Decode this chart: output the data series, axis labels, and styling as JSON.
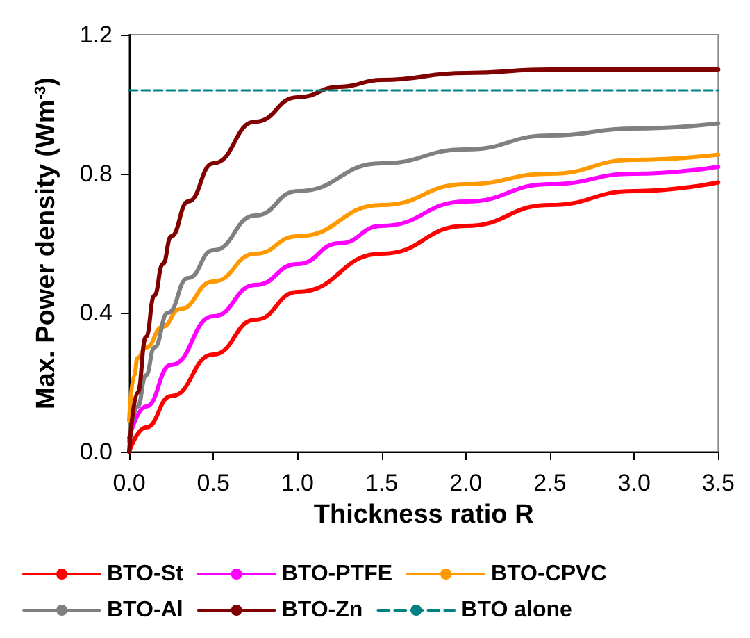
{
  "chart_data": {
    "type": "line",
    "xlabel": "Thickness ratio R",
    "ylabel": "Max. Power density (Wm$^{-3}$)",
    "xlim": [
      0,
      3.5
    ],
    "ylim": [
      0,
      1.2
    ],
    "xticks": [
      {
        "value": 0,
        "label": "0.0"
      },
      {
        "value": 0.5,
        "label": "0.5"
      },
      {
        "value": 1,
        "label": "1.0"
      },
      {
        "value": 1.5,
        "label": "1.5"
      },
      {
        "value": 2,
        "label": "2.0"
      },
      {
        "value": 2.5,
        "label": "2.5"
      },
      {
        "value": 3,
        "label": "3.0"
      },
      {
        "value": 3.5,
        "label": "3.5"
      }
    ],
    "yticks": [
      {
        "value": 0,
        "label": "0.0"
      },
      {
        "value": 0.4,
        "label": "0.4"
      },
      {
        "value": 0.8,
        "label": "0.8"
      },
      {
        "value": 1.2,
        "label": "1.2"
      }
    ],
    "grid": false,
    "legend": "bottom",
    "marker": "none",
    "line_style": "solid",
    "series": [
      {
        "name": "BTO-St",
        "color": "#ff0000",
        "x": [
          0,
          0.1,
          0.25,
          0.5,
          0.75,
          1,
          1.5,
          2,
          2.5,
          3,
          3.5
        ],
        "values": [
          0,
          0.07,
          0.16,
          0.28,
          0.38,
          0.46,
          0.57,
          0.65,
          0.71,
          0.75,
          0.775
        ]
      },
      {
        "name": "BTO-PTFE",
        "color": "#ff00ff",
        "x": [
          0,
          0.1,
          0.25,
          0.5,
          0.75,
          1,
          1.25,
          1.5,
          2,
          2.5,
          3,
          3.5
        ],
        "values": [
          0.04,
          0.13,
          0.25,
          0.39,
          0.48,
          0.54,
          0.6,
          0.65,
          0.72,
          0.77,
          0.8,
          0.82
        ]
      },
      {
        "name": "BTO-CPVC",
        "color": "#ff9900",
        "x": [
          0,
          0.03,
          0.05,
          0.1,
          0.2,
          0.3,
          0.5,
          0.75,
          1,
          1.5,
          2,
          2.5,
          3,
          3.5
        ],
        "values": [
          0.09,
          0.22,
          0.27,
          0.3,
          0.36,
          0.41,
          0.49,
          0.57,
          0.62,
          0.71,
          0.77,
          0.8,
          0.84,
          0.855
        ]
      },
      {
        "name": "BTO-Al",
        "color": "#808080",
        "x": [
          0,
          0.05,
          0.1,
          0.15,
          0.23,
          0.35,
          0.5,
          0.75,
          1,
          1.5,
          2,
          2.5,
          3,
          3.5
        ],
        "values": [
          0.03,
          0.13,
          0.22,
          0.3,
          0.4,
          0.5,
          0.58,
          0.68,
          0.75,
          0.83,
          0.87,
          0.91,
          0.93,
          0.945
        ]
      },
      {
        "name": "BTO-Zn",
        "color": "#800000",
        "x": [
          0,
          0.05,
          0.1,
          0.15,
          0.2,
          0.25,
          0.35,
          0.5,
          0.75,
          1,
          1.25,
          1.5,
          2,
          2.5,
          3,
          3.5
        ],
        "values": [
          0,
          0.17,
          0.33,
          0.45,
          0.54,
          0.62,
          0.72,
          0.83,
          0.95,
          1.02,
          1.05,
          1.07,
          1.09,
          1.1,
          1.1,
          1.1
        ]
      },
      {
        "name": "BTO alone",
        "color": "#008080",
        "line_style": "dashed",
        "x": [
          0,
          3.5
        ],
        "values": [
          1.04,
          1.04
        ]
      }
    ]
  }
}
